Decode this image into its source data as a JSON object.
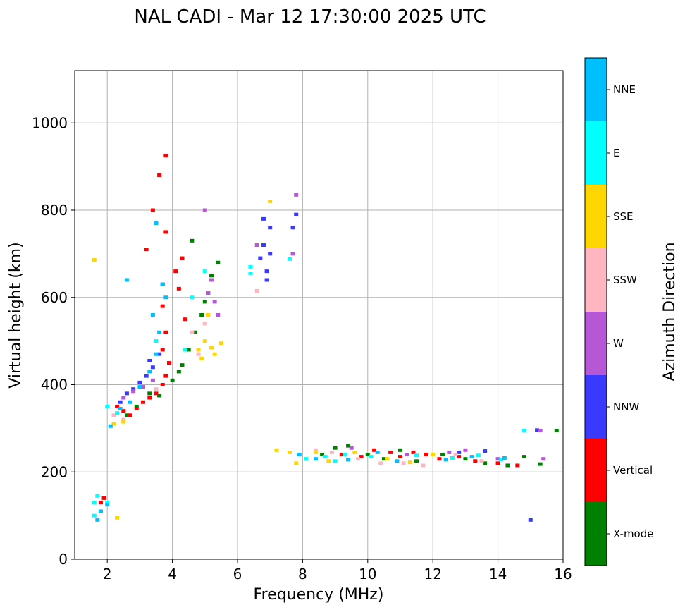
{
  "chart_data": {
    "type": "scatter",
    "title": "NAL CADI - Mar 12 17:30:00 2025 UTC",
    "xlabel": "Frequency (MHz)",
    "ylabel": "Virtual height (km)",
    "xlim": [
      1,
      16
    ],
    "ylim": [
      0,
      1120
    ],
    "xticks": [
      2,
      4,
      6,
      8,
      10,
      12,
      14,
      16
    ],
    "yticks": [
      0,
      200,
      400,
      600,
      800,
      1000
    ],
    "grid": true,
    "colorbar": {
      "label": "Azimuth Direction",
      "categories": [
        {
          "name": "X-mode",
          "color": "#008000"
        },
        {
          "name": "Vertical",
          "color": "#ff0000"
        },
        {
          "name": "NNW",
          "color": "#3a3aff"
        },
        {
          "name": "W",
          "color": "#b657d6"
        },
        {
          "name": "SSW",
          "color": "#ffb6c1"
        },
        {
          "name": "SSE",
          "color": "#ffd700"
        },
        {
          "name": "E",
          "color": "#00ffff"
        },
        {
          "name": "NNE",
          "color": "#00bfff"
        }
      ]
    },
    "series": [
      {
        "name": "X-mode",
        "points": [
          [
            2.6,
            330
          ],
          [
            2.9,
            350
          ],
          [
            3.3,
            380
          ],
          [
            3.6,
            375
          ],
          [
            4.0,
            410
          ],
          [
            4.2,
            430
          ],
          [
            4.3,
            445
          ],
          [
            4.5,
            480
          ],
          [
            4.7,
            520
          ],
          [
            4.9,
            560
          ],
          [
            5.0,
            590
          ],
          [
            5.2,
            650
          ],
          [
            5.4,
            680
          ],
          [
            4.6,
            730
          ],
          [
            8.6,
            240
          ],
          [
            9.0,
            255
          ],
          [
            9.4,
            260
          ],
          [
            10.0,
            240
          ],
          [
            10.5,
            230
          ],
          [
            11.0,
            250
          ],
          [
            11.5,
            225
          ],
          [
            12.3,
            240
          ],
          [
            13.0,
            230
          ],
          [
            13.6,
            220
          ],
          [
            14.3,
            215
          ],
          [
            14.8,
            235
          ],
          [
            15.3,
            218
          ],
          [
            15.8,
            295
          ]
        ]
      },
      {
        "name": "Vertical",
        "points": [
          [
            1.8,
            130
          ],
          [
            1.9,
            140
          ],
          [
            2.3,
            350
          ],
          [
            2.5,
            340
          ],
          [
            2.7,
            330
          ],
          [
            2.9,
            345
          ],
          [
            3.1,
            360
          ],
          [
            3.3,
            370
          ],
          [
            3.5,
            380
          ],
          [
            3.7,
            400
          ],
          [
            3.8,
            420
          ],
          [
            3.9,
            450
          ],
          [
            3.7,
            480
          ],
          [
            3.8,
            520
          ],
          [
            3.7,
            580
          ],
          [
            3.7,
            630
          ],
          [
            3.8,
            750
          ],
          [
            3.4,
            800
          ],
          [
            3.6,
            880
          ],
          [
            3.8,
            925
          ],
          [
            3.2,
            710
          ],
          [
            4.3,
            690
          ],
          [
            4.1,
            660
          ],
          [
            4.2,
            620
          ],
          [
            4.4,
            550
          ],
          [
            9.2,
            240
          ],
          [
            9.8,
            235
          ],
          [
            10.2,
            250
          ],
          [
            10.7,
            245
          ],
          [
            11.0,
            235
          ],
          [
            11.4,
            245
          ],
          [
            11.8,
            240
          ],
          [
            12.2,
            230
          ],
          [
            12.8,
            235
          ],
          [
            13.3,
            225
          ],
          [
            14.0,
            220
          ],
          [
            14.6,
            215
          ]
        ]
      },
      {
        "name": "NNW",
        "points": [
          [
            2.4,
            360
          ],
          [
            2.6,
            380
          ],
          [
            2.8,
            390
          ],
          [
            3.0,
            405
          ],
          [
            3.2,
            420
          ],
          [
            3.4,
            440
          ],
          [
            3.6,
            470
          ],
          [
            3.3,
            455
          ],
          [
            6.7,
            690
          ],
          [
            6.8,
            720
          ],
          [
            6.9,
            660
          ],
          [
            7.0,
            700
          ],
          [
            6.9,
            640
          ],
          [
            7.0,
            760
          ],
          [
            6.8,
            780
          ],
          [
            7.8,
            790
          ],
          [
            7.7,
            760
          ],
          [
            15.0,
            90
          ],
          [
            15.2,
            296
          ],
          [
            12.8,
            245
          ],
          [
            13.6,
            248
          ]
        ]
      },
      {
        "name": "W",
        "points": [
          [
            2.5,
            370
          ],
          [
            2.8,
            385
          ],
          [
            3.1,
            395
          ],
          [
            3.4,
            410
          ],
          [
            5.1,
            610
          ],
          [
            5.2,
            640
          ],
          [
            5.3,
            590
          ],
          [
            5.4,
            560
          ],
          [
            5.0,
            800
          ],
          [
            6.6,
            720
          ],
          [
            7.7,
            700
          ],
          [
            7.8,
            835
          ],
          [
            9.5,
            255
          ],
          [
            11.2,
            240
          ],
          [
            12.5,
            245
          ],
          [
            13.0,
            250
          ],
          [
            14.0,
            230
          ],
          [
            15.4,
            230
          ],
          [
            15.3,
            295
          ]
        ]
      },
      {
        "name": "SSW",
        "points": [
          [
            2.2,
            330
          ],
          [
            2.5,
            320
          ],
          [
            3.5,
            390
          ],
          [
            4.6,
            520
          ],
          [
            4.8,
            470
          ],
          [
            5.0,
            540
          ],
          [
            6.6,
            615
          ],
          [
            8.4,
            250
          ],
          [
            8.9,
            245
          ],
          [
            9.7,
            230
          ],
          [
            10.4,
            220
          ],
          [
            11.1,
            220
          ],
          [
            11.7,
            215
          ],
          [
            12.7,
            240
          ],
          [
            13.5,
            225
          ]
        ]
      },
      {
        "name": "SSE",
        "points": [
          [
            1.6,
            686
          ],
          [
            2.3,
            95
          ],
          [
            2.2,
            310
          ],
          [
            2.5,
            315
          ],
          [
            4.8,
            480
          ],
          [
            4.9,
            460
          ],
          [
            5.0,
            500
          ],
          [
            5.2,
            485
          ],
          [
            5.3,
            470
          ],
          [
            5.5,
            495
          ],
          [
            5.1,
            560
          ],
          [
            7.0,
            820
          ],
          [
            7.2,
            250
          ],
          [
            7.6,
            245
          ],
          [
            7.8,
            220
          ],
          [
            8.1,
            230
          ],
          [
            8.4,
            245
          ],
          [
            8.8,
            225
          ],
          [
            9.6,
            245
          ],
          [
            10.6,
            230
          ],
          [
            11.3,
            222
          ],
          [
            12.0,
            240
          ]
        ]
      },
      {
        "name": "E",
        "points": [
          [
            1.6,
            100
          ],
          [
            1.6,
            130
          ],
          [
            1.7,
            145
          ],
          [
            2.0,
            130
          ],
          [
            2.0,
            350
          ],
          [
            2.3,
            335
          ],
          [
            3.5,
            500
          ],
          [
            4.4,
            480
          ],
          [
            4.6,
            600
          ],
          [
            5.0,
            660
          ],
          [
            6.4,
            670
          ],
          [
            6.4,
            655
          ],
          [
            7.6,
            688
          ],
          [
            8.1,
            230
          ],
          [
            8.7,
            235
          ],
          [
            9.0,
            225
          ],
          [
            9.3,
            240
          ],
          [
            10.1,
            235
          ],
          [
            11.5,
            238
          ],
          [
            12.6,
            232
          ],
          [
            13.4,
            238
          ],
          [
            14.1,
            228
          ],
          [
            14.8,
            295
          ]
        ]
      },
      {
        "name": "NNE",
        "points": [
          [
            1.7,
            90
          ],
          [
            1.8,
            110
          ],
          [
            2.0,
            125
          ],
          [
            2.1,
            305
          ],
          [
            2.4,
            345
          ],
          [
            2.7,
            360
          ],
          [
            3.0,
            395
          ],
          [
            3.3,
            430
          ],
          [
            3.5,
            470
          ],
          [
            3.6,
            520
          ],
          [
            3.4,
            560
          ],
          [
            3.8,
            600
          ],
          [
            3.7,
            630
          ],
          [
            2.6,
            640
          ],
          [
            3.5,
            770
          ],
          [
            7.9,
            240
          ],
          [
            8.4,
            230
          ],
          [
            9.4,
            228
          ],
          [
            10.3,
            245
          ],
          [
            10.9,
            225
          ],
          [
            12.4,
            228
          ],
          [
            13.2,
            235
          ],
          [
            14.2,
            232
          ]
        ]
      }
    ]
  }
}
